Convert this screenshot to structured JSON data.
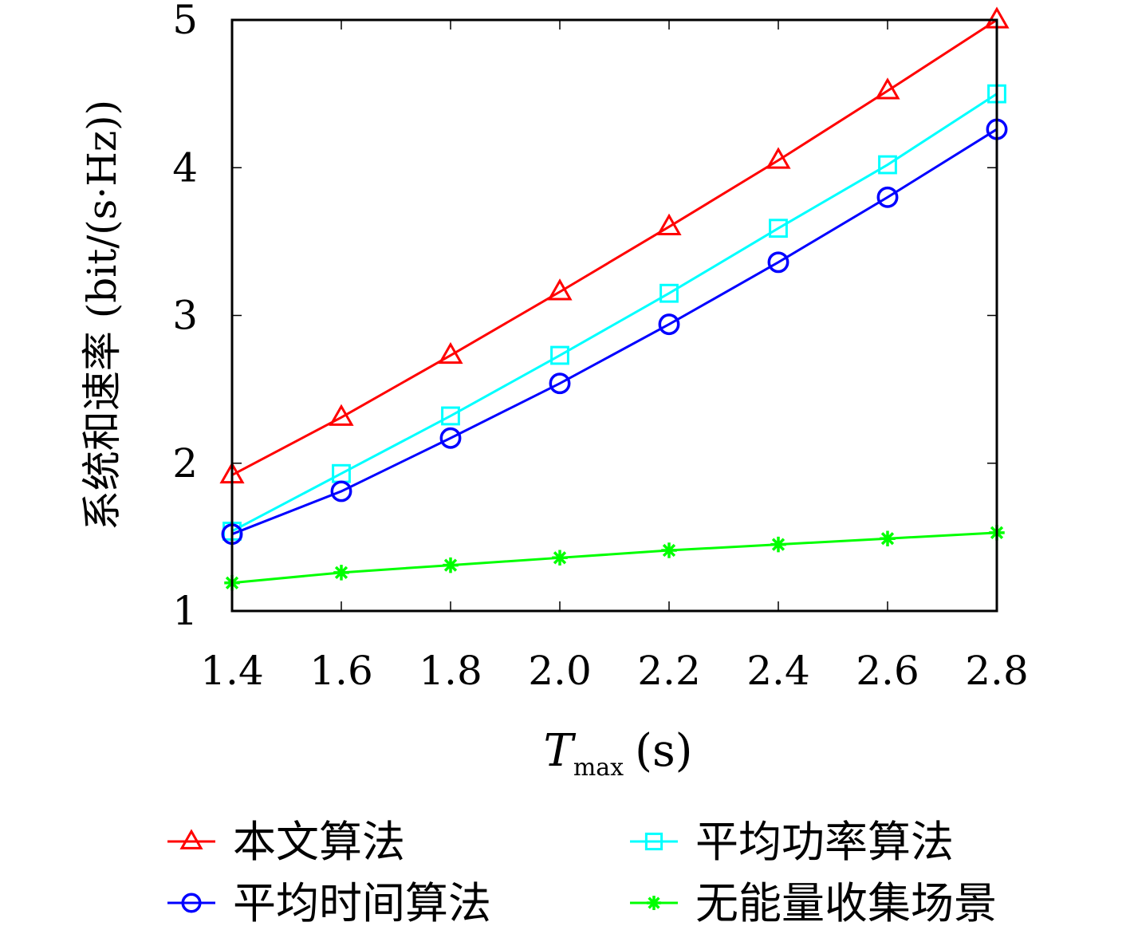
{
  "chart_data": {
    "type": "line",
    "xlabel_main": "T",
    "xlabel_sub": "max",
    "xlabel_unit": "(s)",
    "ylabel": "系统和速率 (bit/(s·Hz))",
    "x": [
      1.4,
      1.6,
      1.8,
      2.0,
      2.2,
      2.4,
      2.6,
      2.8
    ],
    "xticks": [
      "1.4",
      "1.6",
      "1.8",
      "2.0",
      "2.2",
      "2.4",
      "2.6",
      "2.8"
    ],
    "yticks": [
      "1",
      "2",
      "3",
      "4",
      "5"
    ],
    "ylim": [
      1,
      5
    ],
    "grid": false,
    "legend_position": "bottom",
    "series": [
      {
        "name": "本文算法",
        "color": "#ff0000",
        "marker": "triangle",
        "values": [
          1.92,
          2.31,
          2.73,
          3.16,
          3.6,
          4.05,
          4.52,
          5.0
        ]
      },
      {
        "name": "平均功率算法",
        "color": "#00ffff",
        "marker": "square",
        "values": [
          1.54,
          1.93,
          2.32,
          2.73,
          3.15,
          3.59,
          4.02,
          4.5
        ]
      },
      {
        "name": "平均时间算法",
        "color": "#0000ff",
        "marker": "circle",
        "values": [
          1.52,
          1.81,
          2.17,
          2.54,
          2.94,
          3.36,
          3.8,
          4.26
        ]
      },
      {
        "name": "无能量收集场景",
        "color": "#00ff00",
        "marker": "star",
        "values": [
          1.19,
          1.26,
          1.31,
          1.36,
          1.41,
          1.45,
          1.49,
          1.53
        ]
      }
    ]
  }
}
